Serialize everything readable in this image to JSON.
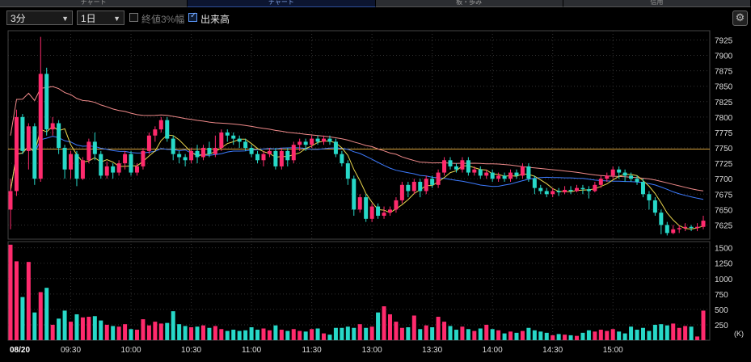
{
  "tabs": [
    {
      "label": "チャート",
      "active": false
    },
    {
      "label": "チャート",
      "active": true
    },
    {
      "label": "板・歩み",
      "active": false
    },
    {
      "label": "信用",
      "active": false
    }
  ],
  "toolbar": {
    "interval_select": "3分",
    "period_select": "1日",
    "close_3pct_label": "終値3%幅",
    "close_3pct_checked": false,
    "volume_label": "出来高",
    "volume_checked": true
  },
  "icons": {
    "settings": "gear-icon",
    "dropdown": "chevron-down-icon"
  },
  "colors": {
    "up": "#ff2a6d",
    "down": "#27d8c8",
    "ma_short": "#e8d44d",
    "ma_mid": "#3d7bff",
    "ma_long": "#f08a8a",
    "ref_line": "#d8a23a"
  },
  "chart_data": {
    "type": "candlestick",
    "date_label": "08/20",
    "x_tick_labels": [
      "09:30",
      "10:00",
      "10:30",
      "11:00",
      "11:30",
      "13:00",
      "13:30",
      "14:00",
      "14:30",
      "15:00"
    ],
    "price_axis": {
      "ticks": [
        7625,
        7650,
        7675,
        7700,
        7725,
        7750,
        7775,
        7800,
        7825,
        7850,
        7875,
        7900,
        7925
      ],
      "ylim": [
        7602,
        7940
      ]
    },
    "volume_axis": {
      "ticks": [
        250,
        500,
        750,
        1000,
        1250,
        1500
      ],
      "ylim": [
        0,
        1600
      ],
      "unit": "(K)"
    },
    "reference_line": 7748,
    "candles": [
      [
        7650,
        7680,
        7618,
        7700,
        1550
      ],
      [
        7680,
        7800,
        7672,
        7812,
        1280
      ],
      [
        7800,
        7745,
        7740,
        7805,
        700
      ],
      [
        7745,
        7785,
        7715,
        7790,
        1270
      ],
      [
        7785,
        7700,
        7690,
        7790,
        450
      ],
      [
        7700,
        7870,
        7695,
        7930,
        780
      ],
      [
        7870,
        7780,
        7770,
        7880,
        850
      ],
      [
        7780,
        7790,
        7770,
        7800,
        250
      ],
      [
        7790,
        7750,
        7740,
        7795,
        350
      ],
      [
        7750,
        7715,
        7700,
        7755,
        480
      ],
      [
        7715,
        7740,
        7700,
        7745,
        300
      ],
      [
        7740,
        7700,
        7688,
        7745,
        420
      ],
      [
        7700,
        7730,
        7698,
        7735,
        370
      ],
      [
        7730,
        7760,
        7725,
        7765,
        380
      ],
      [
        7760,
        7740,
        7730,
        7775,
        390
      ],
      [
        7740,
        7705,
        7700,
        7745,
        320
      ],
      [
        7705,
        7720,
        7700,
        7728,
        250
      ],
      [
        7720,
        7710,
        7700,
        7725,
        230
      ],
      [
        7710,
        7725,
        7705,
        7730,
        220
      ],
      [
        7725,
        7740,
        7715,
        7745,
        260
      ],
      [
        7740,
        7710,
        7705,
        7745,
        180
      ],
      [
        7710,
        7720,
        7705,
        7725,
        170
      ],
      [
        7720,
        7745,
        7715,
        7750,
        340
      ],
      [
        7745,
        7770,
        7740,
        7775,
        240
      ],
      [
        7770,
        7780,
        7760,
        7785,
        300
      ],
      [
        7780,
        7795,
        7775,
        7800,
        270
      ],
      [
        7795,
        7765,
        7760,
        7800,
        280
      ],
      [
        7765,
        7740,
        7730,
        7770,
        470
      ],
      [
        7740,
        7735,
        7725,
        7745,
        260
      ],
      [
        7735,
        7730,
        7720,
        7740,
        230
      ],
      [
        7730,
        7745,
        7725,
        7750,
        210
      ],
      [
        7745,
        7735,
        7725,
        7755,
        220
      ],
      [
        7735,
        7750,
        7730,
        7755,
        240
      ],
      [
        7750,
        7740,
        7735,
        7760,
        200
      ],
      [
        7740,
        7750,
        7735,
        7770,
        230
      ],
      [
        7750,
        7775,
        7745,
        7780,
        180
      ],
      [
        7775,
        7770,
        7760,
        7780,
        150
      ],
      [
        7770,
        7765,
        7755,
        7775,
        170
      ],
      [
        7765,
        7760,
        7750,
        7770,
        150
      ],
      [
        7760,
        7750,
        7745,
        7765,
        160
      ],
      [
        7750,
        7740,
        7735,
        7755,
        210
      ],
      [
        7740,
        7730,
        7725,
        7745,
        170
      ],
      [
        7730,
        7740,
        7720,
        7745,
        190
      ],
      [
        7740,
        7745,
        7735,
        7750,
        160
      ],
      [
        7745,
        7720,
        7715,
        7750,
        240
      ],
      [
        7720,
        7745,
        7715,
        7750,
        170
      ],
      [
        7745,
        7730,
        7720,
        7750,
        150
      ],
      [
        7730,
        7755,
        7725,
        7760,
        180
      ],
      [
        7755,
        7760,
        7745,
        7765,
        150
      ],
      [
        7760,
        7755,
        7745,
        7765,
        140
      ],
      [
        7755,
        7765,
        7750,
        7770,
        180
      ],
      [
        7765,
        7760,
        7755,
        7770,
        190
      ],
      [
        7760,
        7765,
        7755,
        7770,
        110
      ],
      [
        7765,
        7760,
        7755,
        7770,
        90
      ],
      [
        7760,
        7740,
        7735,
        7765,
        200
      ],
      [
        7740,
        7725,
        7720,
        7745,
        200
      ],
      [
        7725,
        7700,
        7690,
        7730,
        220
      ],
      [
        7700,
        7650,
        7640,
        7705,
        200
      ],
      [
        7650,
        7670,
        7645,
        7675,
        260
      ],
      [
        7670,
        7635,
        7630,
        7675,
        200
      ],
      [
        7635,
        7655,
        7630,
        7660,
        220
      ],
      [
        7655,
        7640,
        7635,
        7660,
        450
      ],
      [
        7640,
        7645,
        7635,
        7655,
        550
      ],
      [
        7645,
        7650,
        7640,
        7655,
        420
      ],
      [
        7650,
        7665,
        7645,
        7670,
        300
      ],
      [
        7665,
        7690,
        7660,
        7695,
        200
      ],
      [
        7690,
        7680,
        7670,
        7695,
        210
      ],
      [
        7680,
        7695,
        7675,
        7700,
        400
      ],
      [
        7695,
        7680,
        7670,
        7700,
        180
      ],
      [
        7680,
        7700,
        7675,
        7705,
        240
      ],
      [
        7700,
        7690,
        7685,
        7705,
        210
      ],
      [
        7690,
        7710,
        7685,
        7715,
        380
      ],
      [
        7710,
        7730,
        7705,
        7735,
        300
      ],
      [
        7730,
        7720,
        7715,
        7735,
        230
      ],
      [
        7720,
        7715,
        7710,
        7725,
        170
      ],
      [
        7715,
        7730,
        7710,
        7735,
        220
      ],
      [
        7730,
        7710,
        7705,
        7735,
        180
      ],
      [
        7710,
        7715,
        7705,
        7720,
        150
      ],
      [
        7715,
        7705,
        7700,
        7720,
        190
      ],
      [
        7705,
        7710,
        7700,
        7715,
        250
      ],
      [
        7710,
        7700,
        7695,
        7715,
        180
      ],
      [
        7700,
        7705,
        7695,
        7710,
        160
      ],
      [
        7705,
        7700,
        7695,
        7710,
        110
      ],
      [
        7700,
        7710,
        7695,
        7715,
        140
      ],
      [
        7710,
        7705,
        7700,
        7715,
        120
      ],
      [
        7705,
        7720,
        7700,
        7725,
        150
      ],
      [
        7720,
        7700,
        7695,
        7725,
        200
      ],
      [
        7700,
        7685,
        7675,
        7705,
        160
      ],
      [
        7685,
        7680,
        7675,
        7690,
        140
      ],
      [
        7680,
        7675,
        7670,
        7685,
        120
      ],
      [
        7675,
        7680,
        7670,
        7685,
        80
      ],
      [
        7680,
        7678,
        7672,
        7685,
        100
      ],
      [
        7678,
        7682,
        7675,
        7688,
        90
      ],
      [
        7682,
        7680,
        7675,
        7688,
        80
      ],
      [
        7680,
        7685,
        7678,
        7690,
        70
      ],
      [
        7685,
        7683,
        7675,
        7690,
        120
      ],
      [
        7683,
        7680,
        7668,
        7688,
        160
      ],
      [
        7680,
        7690,
        7678,
        7695,
        140
      ],
      [
        7690,
        7700,
        7685,
        7705,
        170
      ],
      [
        7700,
        7705,
        7695,
        7710,
        150
      ],
      [
        7705,
        7715,
        7700,
        7720,
        180
      ],
      [
        7715,
        7710,
        7700,
        7720,
        140
      ],
      [
        7710,
        7705,
        7695,
        7715,
        110
      ],
      [
        7705,
        7700,
        7695,
        7710,
        220
      ],
      [
        7700,
        7695,
        7690,
        7705,
        170
      ],
      [
        7695,
        7675,
        7670,
        7700,
        200
      ],
      [
        7675,
        7665,
        7650,
        7680,
        150
      ],
      [
        7665,
        7645,
        7640,
        7670,
        250
      ],
      [
        7645,
        7625,
        7610,
        7650,
        260
      ],
      [
        7625,
        7612,
        7608,
        7630,
        240
      ],
      [
        7612,
        7618,
        7610,
        7625,
        270
      ],
      [
        7618,
        7620,
        7612,
        7625,
        200
      ],
      [
        7620,
        7622,
        7615,
        7628,
        230
      ],
      [
        7622,
        7620,
        7615,
        7625,
        220
      ],
      [
        7620,
        7622,
        7615,
        7628,
        60
      ],
      [
        7622,
        7632,
        7618,
        7640,
        480
      ]
    ]
  }
}
